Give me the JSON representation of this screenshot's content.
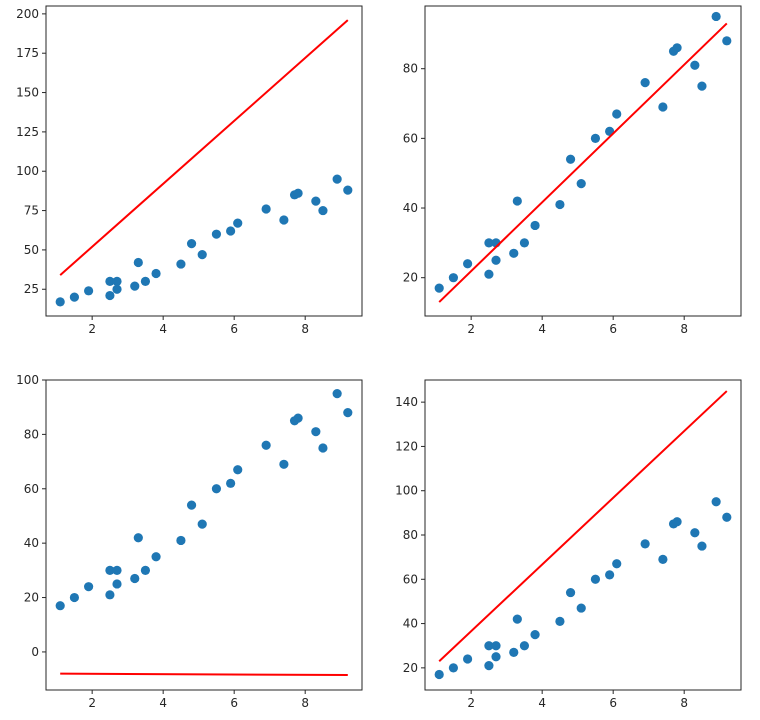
{
  "chart_data": [
    {
      "type": "scatter",
      "xlim": [
        0.7,
        9.6
      ],
      "ylim": [
        8,
        205
      ],
      "xticks": [
        2,
        4,
        6,
        8
      ],
      "yticks": [
        25,
        50,
        75,
        100,
        125,
        150,
        175,
        200
      ],
      "scatter_color": "#1f77b4",
      "line_color": "#ff0000",
      "points": {
        "x": [
          1.1,
          1.5,
          1.9,
          2.5,
          2.5,
          2.7,
          2.7,
          3.2,
          3.3,
          3.5,
          3.8,
          4.5,
          4.8,
          5.1,
          5.5,
          5.9,
          6.1,
          6.9,
          7.4,
          7.7,
          7.8,
          8.3,
          8.5,
          8.9,
          9.2
        ],
        "y": [
          17,
          20,
          24,
          21,
          30,
          25,
          30,
          27,
          42,
          30,
          35,
          41,
          54,
          47,
          60,
          62,
          67,
          76,
          69,
          85,
          86,
          81,
          75,
          95,
          88
        ]
      },
      "line": {
        "x": [
          1.1,
          9.2
        ],
        "y": [
          34,
          196
        ]
      }
    },
    {
      "type": "scatter",
      "xlim": [
        0.7,
        9.6
      ],
      "ylim": [
        9,
        98
      ],
      "xticks": [
        2,
        4,
        6,
        8
      ],
      "yticks": [
        20,
        40,
        60,
        80
      ],
      "scatter_color": "#1f77b4",
      "line_color": "#ff0000",
      "points": {
        "x": [
          1.1,
          1.5,
          1.9,
          2.5,
          2.5,
          2.7,
          2.7,
          3.2,
          3.3,
          3.5,
          3.8,
          4.5,
          4.8,
          5.1,
          5.5,
          5.9,
          6.1,
          6.9,
          7.4,
          7.7,
          7.8,
          8.3,
          8.5,
          8.9,
          9.2
        ],
        "y": [
          17,
          20,
          24,
          21,
          30,
          25,
          30,
          27,
          42,
          30,
          35,
          41,
          54,
          47,
          60,
          62,
          67,
          76,
          69,
          85,
          86,
          81,
          75,
          95,
          88
        ]
      },
      "line": {
        "x": [
          1.1,
          9.2
        ],
        "y": [
          13,
          93
        ]
      }
    },
    {
      "type": "scatter",
      "xlim": [
        0.7,
        9.6
      ],
      "ylim": [
        -14,
        100
      ],
      "xticks": [
        2,
        4,
        6,
        8
      ],
      "yticks": [
        0,
        20,
        40,
        60,
        80,
        100
      ],
      "scatter_color": "#1f77b4",
      "line_color": "#ff0000",
      "points": {
        "x": [
          1.1,
          1.5,
          1.9,
          2.5,
          2.5,
          2.7,
          2.7,
          3.2,
          3.3,
          3.5,
          3.8,
          4.5,
          4.8,
          5.1,
          5.5,
          5.9,
          6.1,
          6.9,
          7.4,
          7.7,
          7.8,
          8.3,
          8.5,
          8.9,
          9.2
        ],
        "y": [
          17,
          20,
          24,
          21,
          30,
          25,
          30,
          27,
          42,
          30,
          35,
          41,
          54,
          47,
          60,
          62,
          67,
          76,
          69,
          85,
          86,
          81,
          75,
          95,
          88
        ]
      },
      "line": {
        "x": [
          1.1,
          9.2
        ],
        "y": [
          -8,
          -8.5
        ]
      }
    },
    {
      "type": "scatter",
      "xlim": [
        0.7,
        9.6
      ],
      "ylim": [
        10,
        150
      ],
      "xticks": [
        2,
        4,
        6,
        8
      ],
      "yticks": [
        20,
        40,
        60,
        80,
        100,
        120,
        140
      ],
      "scatter_color": "#1f77b4",
      "line_color": "#ff0000",
      "points": {
        "x": [
          1.1,
          1.5,
          1.9,
          2.5,
          2.5,
          2.7,
          2.7,
          3.2,
          3.3,
          3.5,
          3.8,
          4.5,
          4.8,
          5.1,
          5.5,
          5.9,
          6.1,
          6.9,
          7.4,
          7.7,
          7.8,
          8.3,
          8.5,
          8.9,
          9.2
        ],
        "y": [
          17,
          20,
          24,
          21,
          30,
          25,
          30,
          27,
          42,
          30,
          35,
          41,
          54,
          47,
          60,
          62,
          67,
          76,
          69,
          85,
          86,
          81,
          75,
          95,
          88
        ]
      },
      "line": {
        "x": [
          1.1,
          9.2
        ],
        "y": [
          23,
          145
        ]
      }
    }
  ]
}
